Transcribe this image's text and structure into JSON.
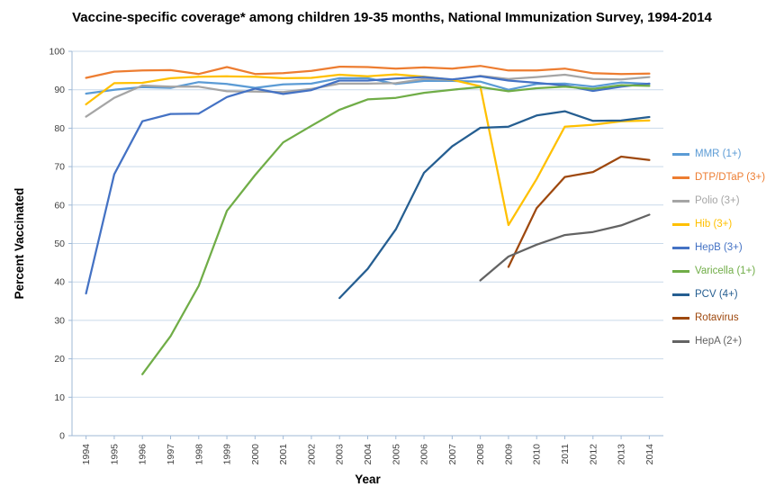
{
  "page": {
    "background": "#ffffff"
  },
  "chart_data": {
    "type": "line",
    "title": "Vaccine-specific coverage* among children 19-35 months, National Immunization Survey, 1994-2014",
    "xlabel": "Year",
    "ylabel": "Percent Vaccinated",
    "ylim": [
      0,
      100
    ],
    "y_ticks": [
      0,
      10,
      20,
      30,
      40,
      50,
      60,
      70,
      80,
      90,
      100
    ],
    "grid": "horizontal",
    "legend_position": "right",
    "axis_color": "#9FB9D6",
    "gridline_color": "#C9D9EA",
    "tick_label_color": "#3F3F3F",
    "x": [
      1994,
      1995,
      1996,
      1997,
      1998,
      1999,
      2000,
      2001,
      2002,
      2003,
      2004,
      2005,
      2006,
      2007,
      2008,
      2009,
      2010,
      2011,
      2012,
      2013,
      2014
    ],
    "series": [
      {
        "name": "MMR (1+)",
        "color": "#5B9BD5",
        "values": [
          89.0,
          90.0,
          90.7,
          90.5,
          92.0,
          91.5,
          90.5,
          91.4,
          91.6,
          93.0,
          93.0,
          91.5,
          92.3,
          92.3,
          92.1,
          90.0,
          91.5,
          91.6,
          90.8,
          91.9,
          91.5
        ]
      },
      {
        "name": "DTP/DTaP (3+)",
        "color": "#ED7D31",
        "values": [
          93.1,
          94.7,
          95.0,
          95.1,
          94.1,
          95.9,
          94.1,
          94.3,
          94.9,
          96.0,
          95.9,
          95.5,
          95.8,
          95.5,
          96.2,
          95.0,
          95.0,
          95.5,
          94.3,
          94.1,
          94.2
        ]
      },
      {
        "name": "Polio (3+)",
        "color": "#A5A5A5",
        "values": [
          83.0,
          87.9,
          91.1,
          90.8,
          90.8,
          89.6,
          89.5,
          89.4,
          90.2,
          91.6,
          91.6,
          91.7,
          92.8,
          92.6,
          93.6,
          92.8,
          93.3,
          93.9,
          92.8,
          92.7,
          93.3
        ]
      },
      {
        "name": "Hib (3+)",
        "color": "#FFC000",
        "values": [
          86.2,
          91.7,
          91.8,
          93.0,
          93.4,
          93.5,
          93.4,
          93.0,
          93.1,
          93.9,
          93.5,
          94.0,
          93.4,
          92.6,
          90.9,
          54.8,
          66.8,
          80.4,
          80.9,
          81.8,
          82.0
        ]
      },
      {
        "name": "HepB (3+)",
        "color": "#4472C4",
        "values": [
          37.0,
          68.0,
          81.8,
          83.7,
          83.8,
          88.1,
          90.3,
          88.9,
          89.9,
          92.4,
          92.4,
          92.9,
          93.3,
          92.7,
          93.5,
          92.4,
          91.8,
          91.1,
          89.7,
          90.8,
          91.6
        ]
      },
      {
        "name": "Varicella (1+)",
        "color": "#70AD47",
        "values": [
          null,
          null,
          16.0,
          25.9,
          39.0,
          58.5,
          67.8,
          76.3,
          80.6,
          84.8,
          87.5,
          87.9,
          89.2,
          90.0,
          90.7,
          89.6,
          90.4,
          90.8,
          90.2,
          91.2,
          91.0
        ]
      },
      {
        "name": "PCV (4+)",
        "color": "#255E91",
        "values": [
          null,
          null,
          null,
          null,
          null,
          null,
          null,
          null,
          null,
          35.8,
          43.4,
          53.7,
          68.4,
          75.3,
          80.1,
          80.4,
          83.3,
          84.4,
          81.9,
          82.0,
          82.9
        ]
      },
      {
        "name": "Rotavirus",
        "color": "#9E480E",
        "values": [
          null,
          null,
          null,
          null,
          null,
          null,
          null,
          null,
          null,
          null,
          null,
          null,
          null,
          null,
          null,
          43.9,
          59.2,
          67.3,
          68.6,
          72.6,
          71.7
        ]
      },
      {
        "name": "HepA (2+)",
        "color": "#636363",
        "values": [
          null,
          null,
          null,
          null,
          null,
          null,
          null,
          null,
          null,
          null,
          null,
          null,
          null,
          null,
          40.4,
          46.6,
          49.7,
          52.2,
          53.0,
          54.7,
          57.5
        ]
      }
    ]
  }
}
